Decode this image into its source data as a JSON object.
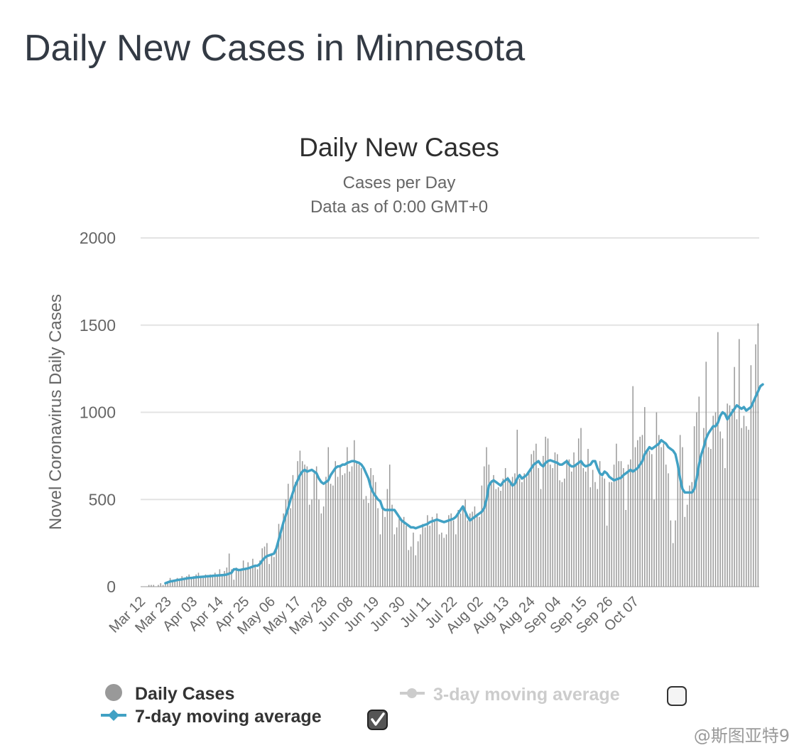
{
  "page": {
    "title": "Daily New Cases in Minnesota"
  },
  "watermark": "@斯图亚特9",
  "chart_data": {
    "type": "bar",
    "title": "Daily New Cases",
    "subtitle": "Cases per Day",
    "subtitle2": "Data as of 0:00 GMT+0",
    "xlabel": "",
    "ylabel": "Novel Coronavirus Daily Cases",
    "ylim": [
      0,
      2000
    ],
    "yticks": [
      0,
      500,
      1000,
      1500,
      2000
    ],
    "grid": true,
    "x_start": "Mar 12",
    "xtick_labels": [
      "Mar 12",
      "Mar 23",
      "Apr 03",
      "Apr 14",
      "Apr 25",
      "May 06",
      "May 17",
      "May 28",
      "Jun 08",
      "Jun 19",
      "Jun 30",
      "Jul 11",
      "Jul 22",
      "Aug 02",
      "Aug 13",
      "Aug 24",
      "Sep 04",
      "Sep 15",
      "Sep 26",
      "Oct 07"
    ],
    "legend_position": "bottom",
    "series": [
      {
        "name": "Daily Cases",
        "kind": "bar",
        "color": "#999999",
        "values": [
          0,
          0,
          0,
          10,
          10,
          10,
          0,
          10,
          20,
          10,
          20,
          30,
          50,
          30,
          40,
          50,
          40,
          60,
          50,
          60,
          70,
          50,
          60,
          70,
          80,
          60,
          50,
          70,
          60,
          70,
          60,
          80,
          60,
          100,
          70,
          90,
          110,
          190,
          100,
          40,
          110,
          90,
          100,
          150,
          110,
          140,
          110,
          160,
          120,
          100,
          150,
          220,
          230,
          250,
          130,
          180,
          170,
          210,
          360,
          300,
          420,
          500,
          590,
          450,
          640,
          600,
          720,
          780,
          720,
          700,
          690,
          470,
          500,
          650,
          690,
          500,
          420,
          460,
          630,
          800,
          590,
          580,
          720,
          630,
          700,
          640,
          650,
          800,
          660,
          690,
          840,
          720,
          700,
          680,
          500,
          520,
          480,
          680,
          640,
          600,
          450,
          300,
          450,
          400,
          560,
          700,
          470,
          300,
          340,
          390,
          380,
          400,
          350,
          210,
          230,
          310,
          180,
          260,
          300,
          360,
          340,
          410,
          350,
          400,
          380,
          420,
          300,
          310,
          280,
          300,
          410,
          420,
          380,
          300,
          440,
          420,
          460,
          500,
          380,
          420,
          430,
          460,
          420,
          400,
          580,
          690,
          800,
          700,
          610,
          640,
          560,
          570,
          550,
          620,
          680,
          630,
          600,
          630,
          650,
          900,
          620,
          600,
          650,
          630,
          650,
          760,
          780,
          820,
          680,
          560,
          750,
          860,
          850,
          700,
          680,
          770,
          760,
          610,
          600,
          620,
          730,
          730,
          660,
          770,
          700,
          850,
          910,
          680,
          660,
          790,
          570,
          670,
          600,
          560,
          720,
          630,
          620,
          350,
          600,
          600,
          700,
          820,
          720,
          720,
          680,
          440,
          700,
          730,
          1150,
          800,
          840,
          860,
          870,
          1030,
          790,
          780,
          760,
          500,
          1000,
          870,
          800,
          820,
          700,
          650,
          380,
          250,
          380,
          700,
          870,
          800,
          400,
          470,
          580,
          600,
          920,
          1000,
          1090,
          730,
          910,
          1290,
          800,
          790,
          980,
          1000,
          1460,
          890,
          850,
          680,
          1050,
          1040,
          1020,
          1260,
          960,
          1420,
          910,
          980,
          920,
          900,
          1270,
          1070,
          1390,
          1510
        ]
      },
      {
        "name": "7-day moving average",
        "kind": "line",
        "color": "#41a1c4",
        "values": [
          null,
          null,
          null,
          null,
          null,
          null,
          null,
          null,
          null,
          null,
          20,
          25,
          30,
          32,
          35,
          38,
          40,
          42,
          45,
          47,
          50,
          50,
          52,
          54,
          55,
          56,
          57,
          58,
          60,
          60,
          62,
          63,
          64,
          65,
          66,
          67,
          70,
          75,
          80,
          100,
          100,
          95,
          97,
          100,
          102,
          105,
          110,
          115,
          120,
          120,
          130,
          150,
          165,
          175,
          180,
          185,
          190,
          220,
          270,
          320,
          370,
          410,
          450,
          500,
          540,
          580,
          610,
          640,
          660,
          670,
          660,
          665,
          670,
          660,
          650,
          620,
          600,
          590,
          600,
          610,
          640,
          660,
          680,
          690,
          690,
          700,
          700,
          710,
          715,
          720,
          720,
          715,
          710,
          700,
          680,
          650,
          620,
          570,
          540,
          520,
          500,
          490,
          450,
          440,
          440,
          440,
          440,
          440,
          420,
          400,
          380,
          370,
          360,
          350,
          340,
          340,
          335,
          340,
          345,
          350,
          355,
          360,
          370,
          375,
          380,
          385,
          380,
          375,
          370,
          375,
          380,
          385,
          390,
          400,
          420,
          440,
          460,
          430,
          400,
          380,
          390,
          400,
          410,
          420,
          430,
          450,
          500,
          580,
          600,
          610,
          600,
          590,
          580,
          600,
          610,
          620,
          600,
          580,
          590,
          620,
          640,
          620,
          630,
          640,
          660,
          680,
          700,
          710,
          720,
          700,
          690,
          710,
          720,
          725,
          720,
          715,
          710,
          700,
          700,
          710,
          720,
          700,
          690,
          690,
          700,
          710,
          720,
          700,
          690,
          695,
          700,
          720,
          720,
          680,
          650,
          640,
          660,
          650,
          630,
          620,
          610,
          615,
          620,
          625,
          640,
          650,
          660,
          670,
          660,
          670,
          680,
          700,
          720,
          760,
          780,
          800,
          790,
          800,
          810,
          820,
          840,
          830,
          820,
          800,
          790,
          780,
          760,
          700,
          620,
          560,
          540,
          540,
          540,
          540,
          560,
          620,
          700,
          760,
          800,
          850,
          880,
          900,
          920,
          920,
          940,
          980,
          1000,
          990,
          960,
          980,
          1000,
          1020,
          1040,
          1030,
          1020,
          1030,
          1010,
          1020,
          1030,
          1060,
          1090,
          1120,
          1150,
          1160
        ]
      },
      {
        "name": "3-day moving average",
        "kind": "line",
        "color": "#cccccc",
        "enabled": false
      }
    ]
  },
  "legend": {
    "items": [
      {
        "label": "Daily Cases",
        "color": "#999999",
        "icon": "circle-icon"
      },
      {
        "label": "3-day moving average",
        "color": "#cccccc",
        "icon": "line-dot-icon",
        "checkbox": false
      },
      {
        "label": "7-day moving average",
        "color": "#41a1c4",
        "icon": "line-diamond-icon",
        "checkbox": true
      }
    ]
  }
}
